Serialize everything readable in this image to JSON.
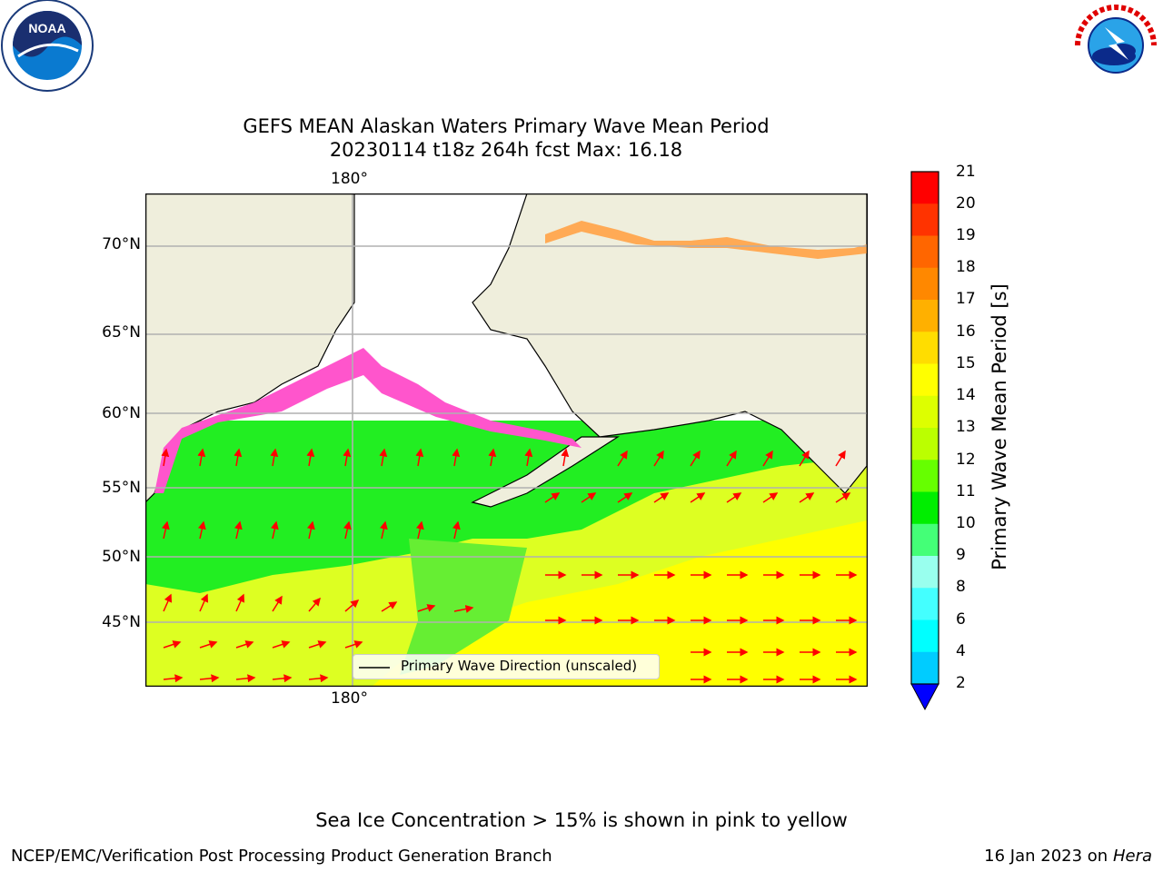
{
  "header": {
    "title_line1": "GEFS MEAN Alaskan Waters Primary Wave Mean Period",
    "title_line2": "20230114 t18z 264h fcst   Max: 16.18"
  },
  "logos": {
    "left_name": "NOAA",
    "left_ring_text": "NATIONAL OCEANIC AND ATMOSPHERIC ADMINISTRATION · U.S. DEPARTMENT OF COMMERCE",
    "right_ring_text": "NATIONAL WEATHER SERVICE"
  },
  "map": {
    "lon_label_top": "180°",
    "lon_label_bottom": "180°",
    "lat_labels": [
      {
        "text": "70°N"
      },
      {
        "text": "65°N"
      },
      {
        "text": "60°N"
      },
      {
        "text": "55°N"
      },
      {
        "text": "50°N"
      },
      {
        "text": "45°N"
      }
    ],
    "legend_label": "Primary Wave Direction (unscaled)"
  },
  "colorbar": {
    "title": "Primary Wave Mean Period [s]",
    "ticks": [
      "21",
      "20",
      "19",
      "18",
      "17",
      "16",
      "15",
      "14",
      "13",
      "12",
      "11",
      "10",
      "9",
      "8",
      "6",
      "4",
      "2"
    ],
    "colors": [
      "#ff0000",
      "#ff3300",
      "#ff6600",
      "#ff8800",
      "#ffb000",
      "#ffdd00",
      "#ffff00",
      "#ddff00",
      "#bbff00",
      "#66ff00",
      "#00ee00",
      "#44ff77",
      "#99ffee",
      "#44ffff",
      "#00ffff",
      "#00ccff",
      "#0077ff"
    ],
    "extend_color": "#0000ff"
  },
  "footer": {
    "center": "Sea Ice Concentration > 15% is shown in pink to yellow",
    "left": "NCEP/EMC/Verification Post Processing Product Generation Branch",
    "right_prefix": "16 Jan 2023 on ",
    "right_machine": "Hera"
  }
}
